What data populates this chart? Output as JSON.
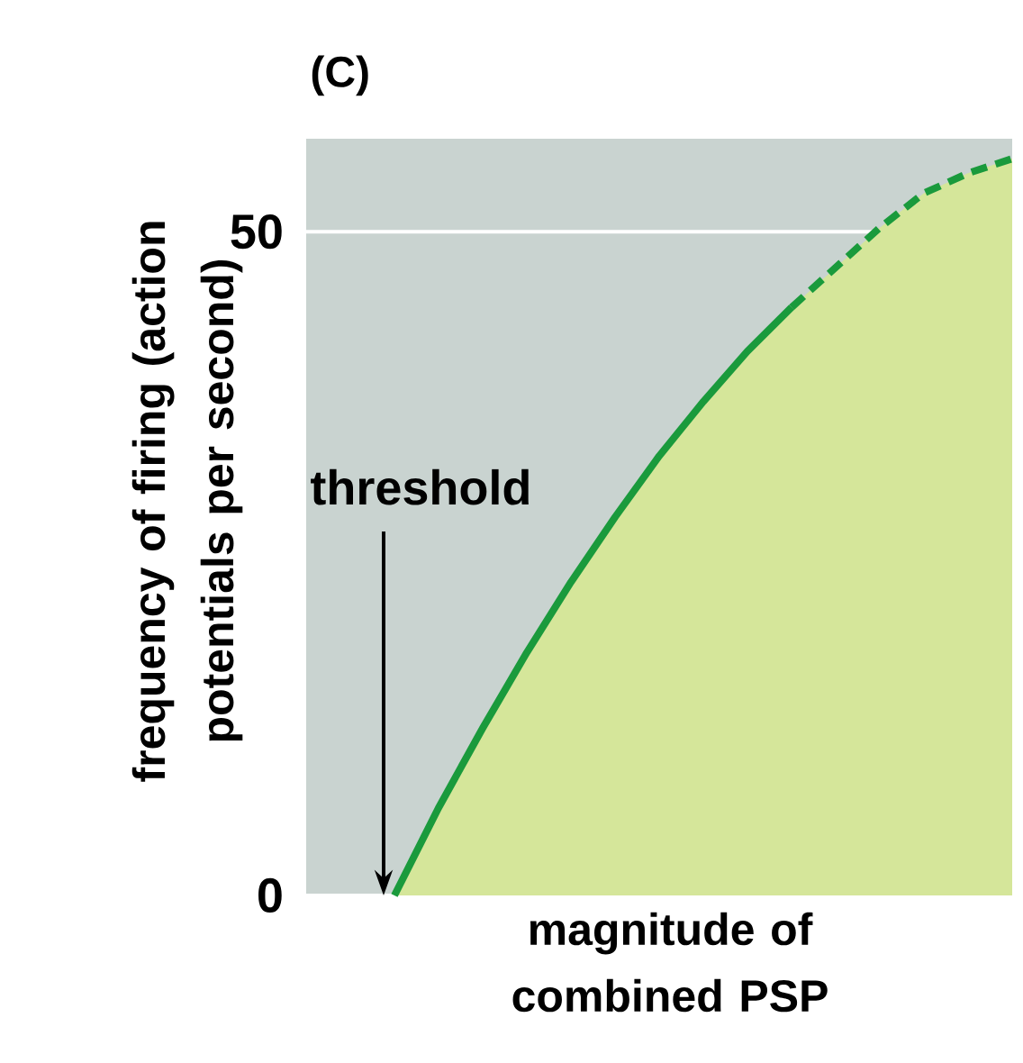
{
  "chart_data": {
    "type": "area",
    "title": "(C)",
    "xlabel": "magnitude of combined PSP",
    "ylabel": "frequency of firing (action potentials per second)",
    "categories": [
      null,
      null,
      null,
      null,
      null,
      null,
      null,
      null,
      null,
      null,
      null,
      null,
      null,
      null,
      null,
      null,
      null
    ],
    "ylim": [
      0,
      57
    ],
    "yticks": [
      0,
      50
    ],
    "grid": "y",
    "marker": "none",
    "annotations": [
      "threshold"
    ],
    "series": [
      {
        "color": "#1a9a3c",
        "line_style": "solid",
        "values": [
          null,
          null,
          0,
          6.6,
          12.6,
          18.3,
          23.6,
          28.5,
          33.1,
          37.2,
          41.0,
          44.3,
          null,
          null,
          null,
          null,
          null
        ]
      },
      {
        "color": "#1a9a3c",
        "line_style": "dashed",
        "values": [
          null,
          null,
          null,
          null,
          null,
          null,
          null,
          null,
          null,
          null,
          null,
          44.3,
          47.3,
          50.3,
          52.9,
          54.4,
          55.5
        ]
      }
    ]
  }
}
